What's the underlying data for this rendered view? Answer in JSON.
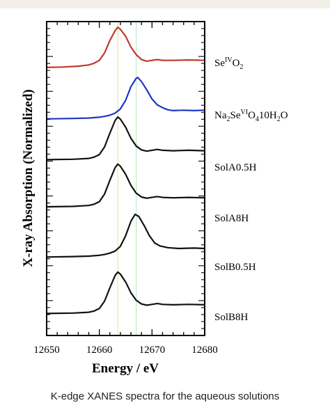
{
  "chart_data": {
    "type": "line",
    "title": "",
    "xlabel": "Energy / eV",
    "ylabel": "X-ray Absorption (Normalized)",
    "xlim": [
      12650,
      12680
    ],
    "x_ticks": [
      "12650",
      "12660",
      "12670",
      "12680"
    ],
    "grid": false,
    "legend": "right of each trace",
    "reference_lines": [
      {
        "x": 12663.5,
        "color": "#e8e6a0"
      },
      {
        "x": 12667.0,
        "color": "#bfe7c4"
      }
    ],
    "series": [
      {
        "name": "Se(IV)O2",
        "label_parts": [
          {
            "t": "Se"
          },
          {
            "t": "IV",
            "s": "sup"
          },
          {
            "t": "O"
          },
          {
            "t": "2",
            "s": "sub"
          }
        ],
        "color": "#c0392b",
        "offset": 0.85,
        "scale": 0.66,
        "points": [
          [
            12650,
            0.03
          ],
          [
            12653,
            0.04
          ],
          [
            12656,
            0.06
          ],
          [
            12658,
            0.09
          ],
          [
            12659,
            0.13
          ],
          [
            12660,
            0.2
          ],
          [
            12661,
            0.38
          ],
          [
            12662,
            0.68
          ],
          [
            12663,
            0.92
          ],
          [
            12663.5,
            1.0
          ],
          [
            12664,
            0.95
          ],
          [
            12665,
            0.78
          ],
          [
            12666,
            0.52
          ],
          [
            12667,
            0.34
          ],
          [
            12668,
            0.22
          ],
          [
            12669,
            0.18
          ],
          [
            12670,
            0.2
          ],
          [
            12671,
            0.22
          ],
          [
            12672,
            0.2
          ],
          [
            12674,
            0.2
          ],
          [
            12677,
            0.21
          ],
          [
            12680,
            0.2
          ]
        ]
      },
      {
        "name": "Na2Se(VI)O4 10H2O",
        "label_parts": [
          {
            "t": "Na"
          },
          {
            "t": "2",
            "s": "sub"
          },
          {
            "t": "Se"
          },
          {
            "t": "VI",
            "s": "sup"
          },
          {
            "t": "O"
          },
          {
            "t": "4",
            "s": "sub"
          },
          {
            "t": "10H"
          },
          {
            "t": "2",
            "s": "sub"
          },
          {
            "t": "O"
          }
        ],
        "color": "#1f36c8",
        "offset": 0.69,
        "scale": 0.66,
        "points": [
          [
            12650,
            0.0
          ],
          [
            12655,
            0.01
          ],
          [
            12658,
            0.02
          ],
          [
            12660,
            0.04
          ],
          [
            12661,
            0.06
          ],
          [
            12662,
            0.09
          ],
          [
            12663,
            0.14
          ],
          [
            12664,
            0.24
          ],
          [
            12665,
            0.45
          ],
          [
            12666,
            0.78
          ],
          [
            12667,
            0.98
          ],
          [
            12667.3,
            1.0
          ],
          [
            12668,
            0.9
          ],
          [
            12669,
            0.7
          ],
          [
            12670,
            0.48
          ],
          [
            12671,
            0.34
          ],
          [
            12672,
            0.27
          ],
          [
            12673,
            0.22
          ],
          [
            12674,
            0.2
          ],
          [
            12676,
            0.21
          ],
          [
            12678,
            0.2
          ],
          [
            12680,
            0.21
          ]
        ]
      },
      {
        "name": "SolA0.5H",
        "label_parts": [
          {
            "t": "SolA0.5H"
          }
        ],
        "color": "#111111",
        "offset": 0.56,
        "scale": 0.68,
        "points": [
          [
            12650,
            0.0
          ],
          [
            12655,
            0.01
          ],
          [
            12658,
            0.03
          ],
          [
            12659,
            0.06
          ],
          [
            12660,
            0.12
          ],
          [
            12661,
            0.3
          ],
          [
            12662,
            0.62
          ],
          [
            12663,
            0.92
          ],
          [
            12663.5,
            1.0
          ],
          [
            12664,
            0.95
          ],
          [
            12665,
            0.76
          ],
          [
            12666,
            0.5
          ],
          [
            12667,
            0.32
          ],
          [
            12668,
            0.23
          ],
          [
            12669,
            0.2
          ],
          [
            12670,
            0.22
          ],
          [
            12671,
            0.24
          ],
          [
            12672,
            0.22
          ],
          [
            12674,
            0.21
          ],
          [
            12677,
            0.22
          ],
          [
            12680,
            0.21
          ]
        ]
      },
      {
        "name": "SolA8H",
        "label_parts": [
          {
            "t": "SolA8H"
          }
        ],
        "color": "#111111",
        "offset": 0.41,
        "scale": 0.68,
        "points": [
          [
            12650,
            0.0
          ],
          [
            12655,
            0.01
          ],
          [
            12658,
            0.03
          ],
          [
            12659,
            0.06
          ],
          [
            12660,
            0.12
          ],
          [
            12661,
            0.3
          ],
          [
            12662,
            0.62
          ],
          [
            12663,
            0.92
          ],
          [
            12663.5,
            1.0
          ],
          [
            12664,
            0.95
          ],
          [
            12665,
            0.76
          ],
          [
            12666,
            0.5
          ],
          [
            12667,
            0.32
          ],
          [
            12668,
            0.23
          ],
          [
            12669,
            0.2
          ],
          [
            12670,
            0.22
          ],
          [
            12671,
            0.24
          ],
          [
            12672,
            0.22
          ],
          [
            12674,
            0.21
          ],
          [
            12677,
            0.22
          ],
          [
            12680,
            0.21
          ]
        ]
      },
      {
        "name": "SolB0.5H",
        "label_parts": [
          {
            "t": "SolB0.5H"
          }
        ],
        "color": "#111111",
        "offset": 0.25,
        "scale": 0.68,
        "points": [
          [
            12650,
            0.0
          ],
          [
            12655,
            0.01
          ],
          [
            12658,
            0.02
          ],
          [
            12660,
            0.04
          ],
          [
            12661,
            0.06
          ],
          [
            12662,
            0.09
          ],
          [
            12663,
            0.14
          ],
          [
            12664,
            0.25
          ],
          [
            12665,
            0.5
          ],
          [
            12666,
            0.84
          ],
          [
            12666.8,
            1.0
          ],
          [
            12667.5,
            0.95
          ],
          [
            12668.5,
            0.74
          ],
          [
            12669.5,
            0.5
          ],
          [
            12670.5,
            0.33
          ],
          [
            12671.5,
            0.26
          ],
          [
            12673,
            0.22
          ],
          [
            12675,
            0.2
          ],
          [
            12678,
            0.21
          ],
          [
            12680,
            0.2
          ]
        ]
      },
      {
        "name": "SolB8H",
        "label_parts": [
          {
            "t": "SolB8H"
          }
        ],
        "color": "#111111",
        "offset": 0.07,
        "scale": 0.66,
        "points": [
          [
            12650,
            0.0
          ],
          [
            12655,
            0.01
          ],
          [
            12658,
            0.03
          ],
          [
            12659,
            0.06
          ],
          [
            12660,
            0.12
          ],
          [
            12661,
            0.3
          ],
          [
            12662,
            0.62
          ],
          [
            12663,
            0.92
          ],
          [
            12663.5,
            1.0
          ],
          [
            12664,
            0.95
          ],
          [
            12665,
            0.76
          ],
          [
            12666,
            0.5
          ],
          [
            12667,
            0.32
          ],
          [
            12668,
            0.23
          ],
          [
            12669,
            0.2
          ],
          [
            12670,
            0.22
          ],
          [
            12671,
            0.24
          ],
          [
            12672,
            0.22
          ],
          [
            12674,
            0.21
          ],
          [
            12677,
            0.22
          ],
          [
            12680,
            0.21
          ]
        ]
      }
    ]
  },
  "caption": "K-edge XANES spectra for the aqueous solutions"
}
